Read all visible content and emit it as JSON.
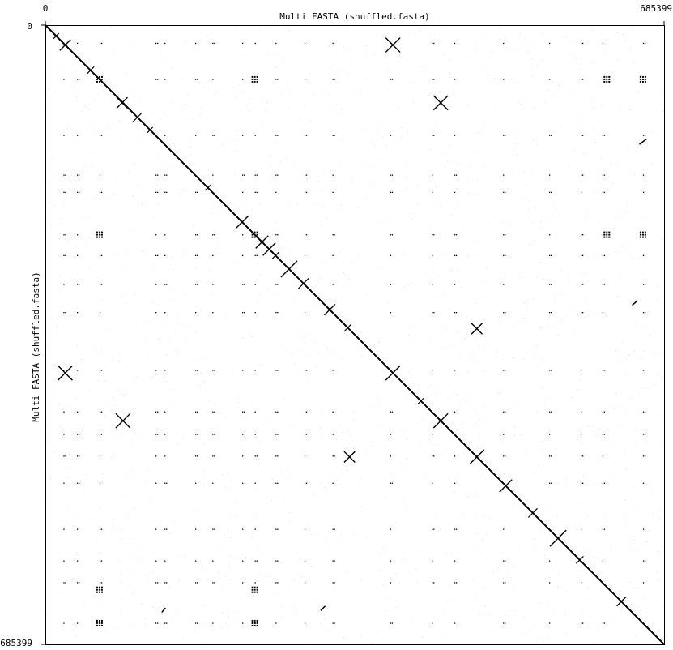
{
  "chart_data": {
    "type": "scatter",
    "subtype": "dot-plot",
    "title": "",
    "xlabel": "Multi FASTA (shuffled.fasta)",
    "ylabel": "Multi FASTA (shuffled.fasta)",
    "xlim": [
      0,
      685399
    ],
    "ylim": [
      0,
      685399
    ],
    "y_inverted": true,
    "x_tick_labels": [
      "0",
      "685399"
    ],
    "y_tick_labels": [
      "0",
      "685399"
    ],
    "grid": false,
    "colors": {
      "dots": "#000000",
      "background": "#ffffff",
      "noise": "#c8c8c8"
    },
    "diagonal": {
      "from": [
        0,
        0
      ],
      "to": [
        685399,
        685399
      ]
    },
    "segment_boundaries": [
      20000,
      35000,
      60000,
      84000,
      108000,
      122000,
      132000,
      166000,
      185000,
      218000,
      232000,
      255000,
      272000,
      287000,
      318000,
      337000,
      382000,
      428000,
      463000,
      477000,
      507000,
      540000,
      558000,
      593000,
      617000,
      637000,
      662000,
      685399
    ],
    "repeat_rows": [
      20000,
      60000,
      122000,
      166000,
      185000,
      232000,
      255000,
      287000,
      318000,
      382000,
      428000,
      453000,
      477000,
      507000,
      558000,
      593000,
      617000,
      662000
    ],
    "repeat_cols": [
      20000,
      35000,
      60000,
      122000,
      132000,
      166000,
      185000,
      218000,
      232000,
      255000,
      287000,
      318000,
      382000,
      428000,
      453000,
      507000,
      558000,
      593000,
      617000,
      662000
    ],
    "strong_repeats": [
      {
        "x": 60000,
        "y": 60000
      },
      {
        "x": 232000,
        "y": 60000
      },
      {
        "x": 60000,
        "y": 232000
      },
      {
        "x": 232000,
        "y": 232000
      },
      {
        "x": 60000,
        "y": 625000
      },
      {
        "x": 60000,
        "y": 662000
      },
      {
        "x": 232000,
        "y": 625000
      },
      {
        "x": 232000,
        "y": 662000
      },
      {
        "x": 622000,
        "y": 60000
      },
      {
        "x": 662000,
        "y": 60000
      },
      {
        "x": 622000,
        "y": 232000
      },
      {
        "x": 662000,
        "y": 232000
      }
    ],
    "crosses": [
      {
        "x": 22000,
        "y": 22000,
        "size": 12000
      },
      {
        "x": 385000,
        "y": 22000,
        "size": 16000
      },
      {
        "x": 438000,
        "y": 86000,
        "size": 16000
      },
      {
        "x": 85000,
        "y": 86000,
        "size": 12000
      },
      {
        "x": 218000,
        "y": 218000,
        "size": 14000
      },
      {
        "x": 240000,
        "y": 240000,
        "size": 14000
      },
      {
        "x": 248000,
        "y": 248000,
        "size": 14000
      },
      {
        "x": 270000,
        "y": 270000,
        "size": 18000
      },
      {
        "x": 315000,
        "y": 315000,
        "size": 12000
      },
      {
        "x": 478000,
        "y": 336000,
        "size": 12000
      },
      {
        "x": 22000,
        "y": 385000,
        "size": 16000
      },
      {
        "x": 86000,
        "y": 438000,
        "size": 16000
      },
      {
        "x": 385000,
        "y": 385000,
        "size": 16000
      },
      {
        "x": 337000,
        "y": 478000,
        "size": 12000
      },
      {
        "x": 438000,
        "y": 438000,
        "size": 16000
      },
      {
        "x": 478000,
        "y": 478000,
        "size": 16000
      },
      {
        "x": 510000,
        "y": 510000,
        "size": 14000
      },
      {
        "x": 568000,
        "y": 568000,
        "size": 18000
      },
      {
        "x": 638000,
        "y": 638000,
        "size": 10000
      }
    ],
    "diag_ticks": [
      {
        "x": 12000,
        "y": 12000,
        "len": 6000
      },
      {
        "x": 50000,
        "y": 50000,
        "len": 8000
      },
      {
        "x": 102000,
        "y": 102000,
        "len": 10000
      },
      {
        "x": 116000,
        "y": 116000,
        "len": 6000
      },
      {
        "x": 180000,
        "y": 180000,
        "len": 6000
      },
      {
        "x": 255000,
        "y": 255000,
        "len": 8000
      },
      {
        "x": 286000,
        "y": 286000,
        "len": 12000
      },
      {
        "x": 335000,
        "y": 335000,
        "len": 8000
      },
      {
        "x": 416000,
        "y": 416000,
        "len": 6000
      },
      {
        "x": 540000,
        "y": 540000,
        "len": 10000
      },
      {
        "x": 592000,
        "y": 592000,
        "len": 8000
      }
    ],
    "short_diagonals": [
      {
        "x0": 658000,
        "y0": 132000,
        "x1": 666000,
        "y1": 126000
      },
      {
        "x0": 650000,
        "y0": 310000,
        "x1": 656000,
        "y1": 305000
      },
      {
        "x0": 129000,
        "y0": 650000,
        "x1": 133000,
        "y1": 645000
      },
      {
        "x0": 305000,
        "y0": 648000,
        "x1": 310000,
        "y1": 643000
      }
    ]
  }
}
